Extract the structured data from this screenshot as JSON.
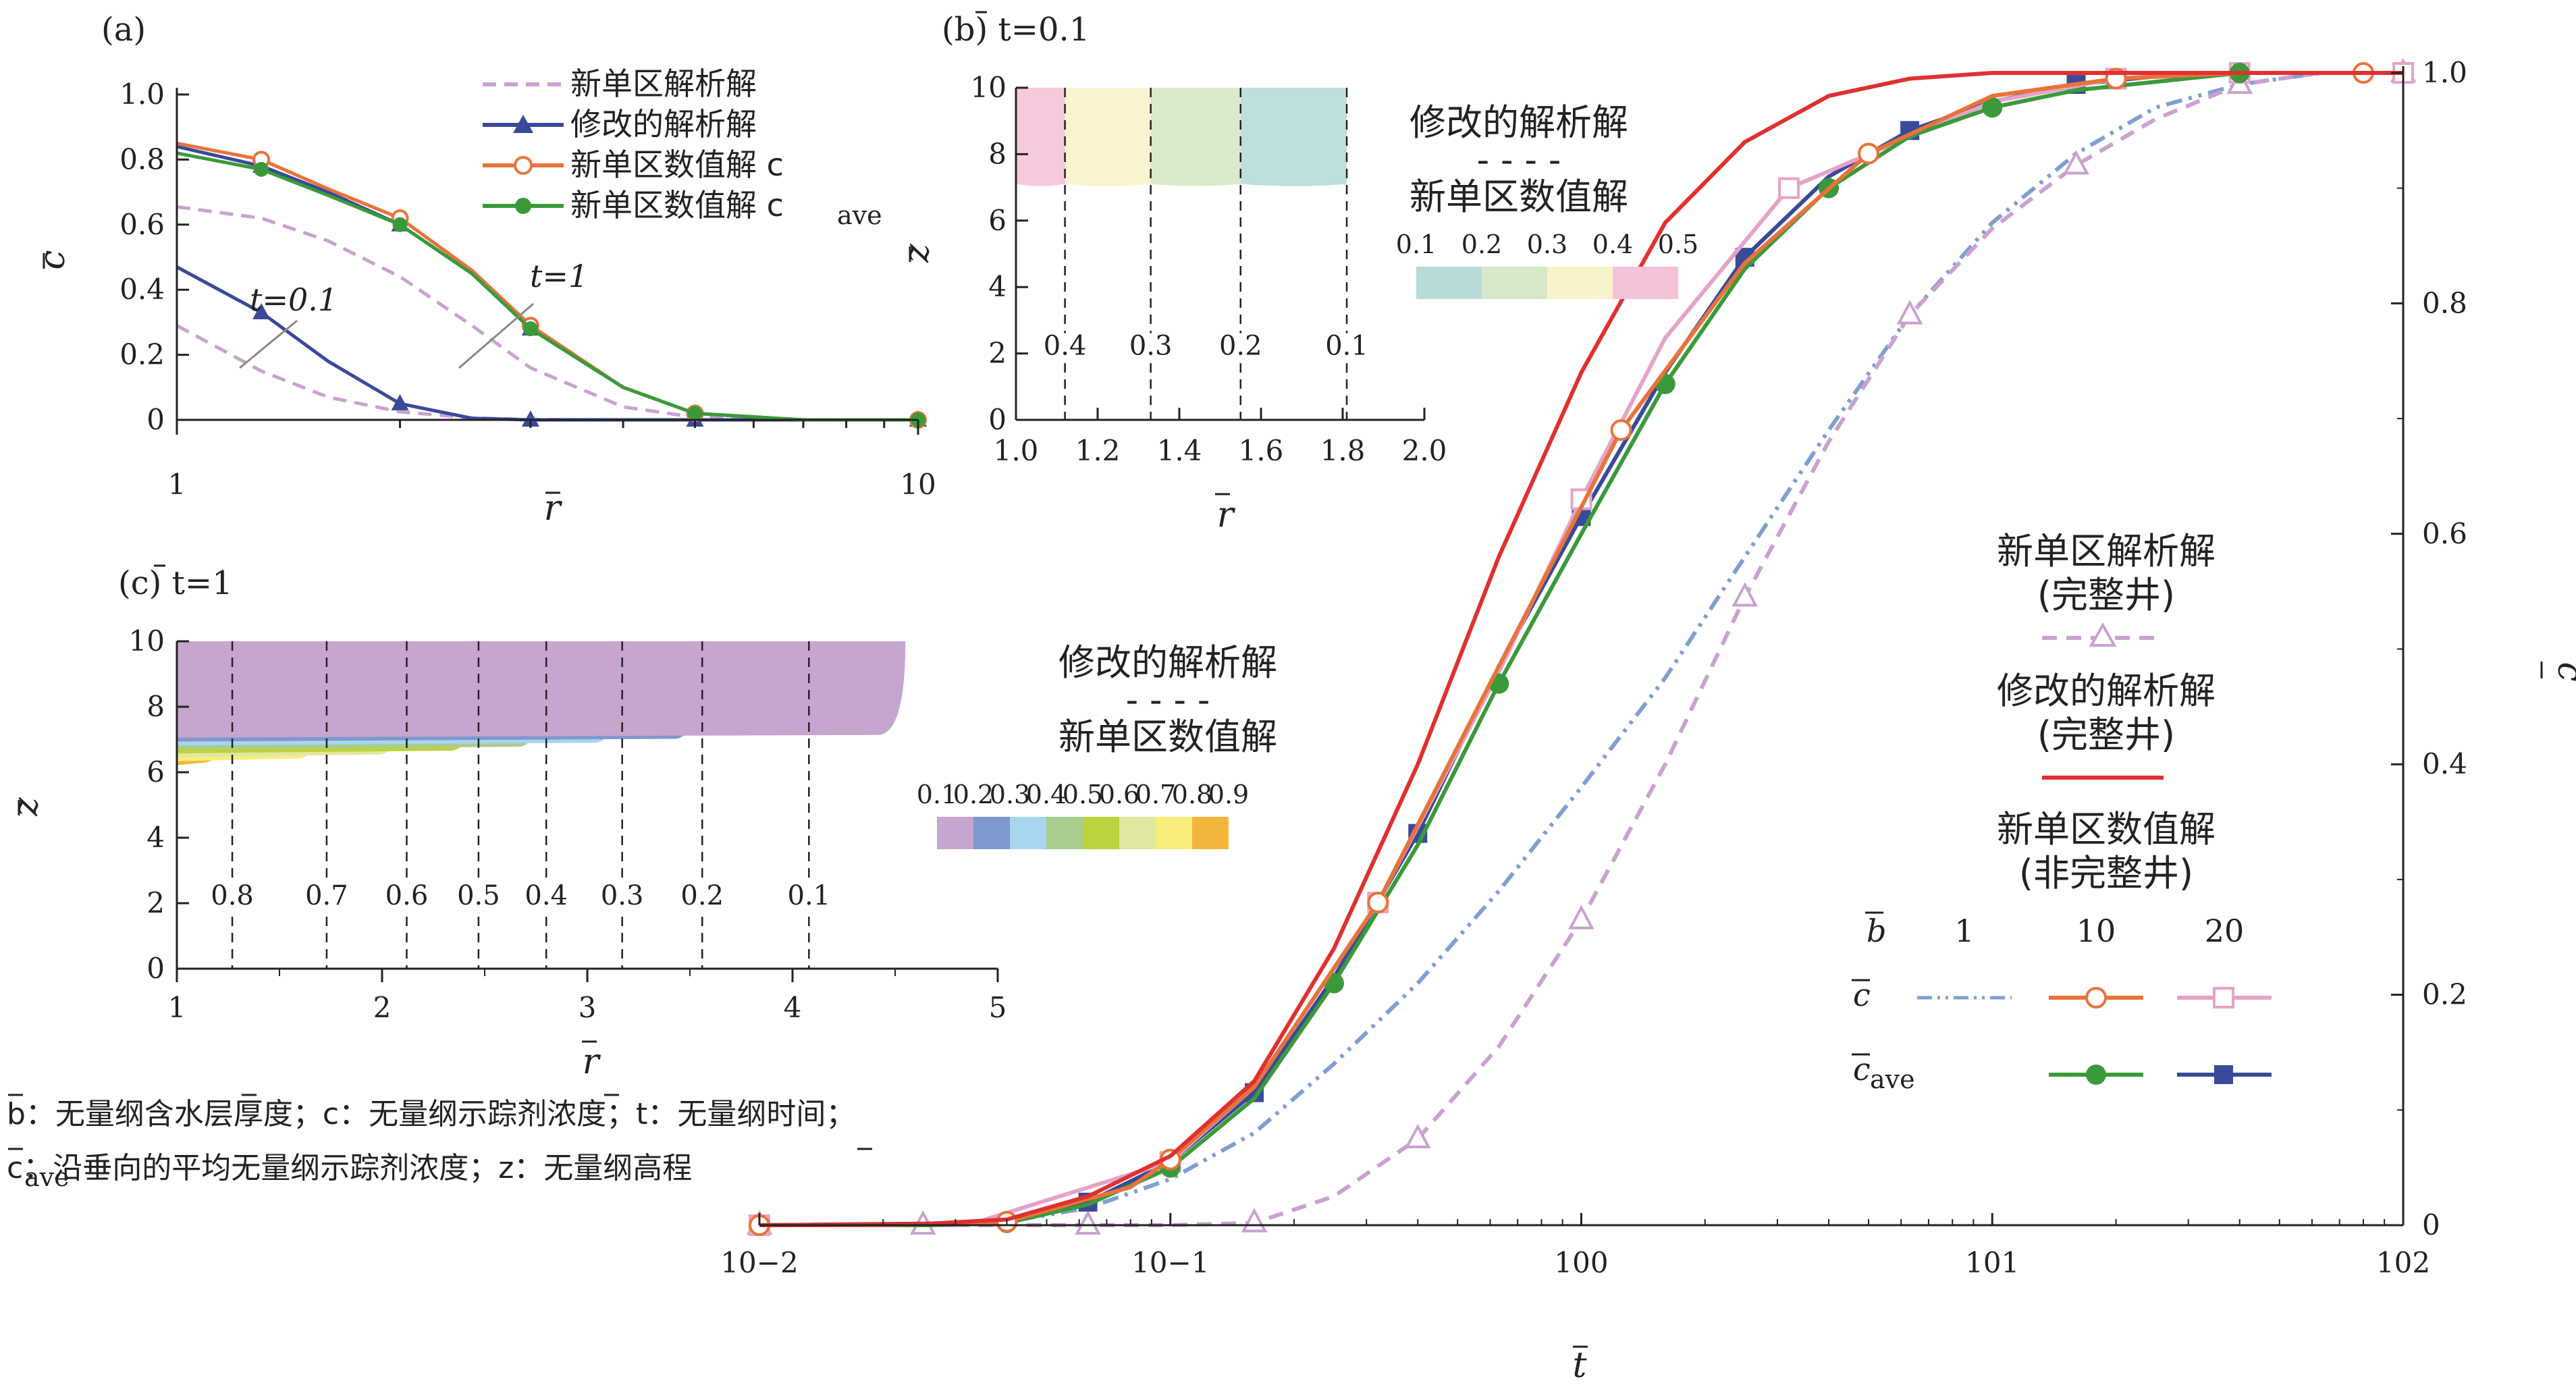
{
  "colors": {
    "dashed_purple": "#c9a2cf",
    "blue": "#3a4a9a",
    "orange": "#e8733a",
    "green": "#3a9a3a",
    "red": "#e03030",
    "pink": "#e6a3c9",
    "dashdot_blue": "#7f9fd1"
  },
  "main": {
    "xlabel": "t",
    "ylabel": "c",
    "x_ticks": [
      "10−2",
      "10−1",
      "100",
      "101",
      "102"
    ],
    "y_ticks": [
      "0",
      "0.2",
      "0.4",
      "0.6",
      "0.8",
      "1.0"
    ],
    "legend": {
      "item1": "新单区解析解",
      "item1b": "(完整井)",
      "item2": "修改的解析解",
      "item2b": "(完整井)",
      "item3": "新单区数值解",
      "item3b": "(非完整井)",
      "b_label": "b",
      "b_values": [
        "1",
        "10",
        "20"
      ],
      "row_c": "c",
      "row_cave": "c",
      "row_cave_sub": "ave"
    }
  },
  "panel_a": {
    "title": "(a)",
    "xlabel": "r",
    "ylabel": "c",
    "x_ticks": [
      "1",
      "10"
    ],
    "y_ticks": [
      "0",
      "0.2",
      "0.4",
      "0.6",
      "0.8",
      "1.0"
    ],
    "legend": [
      "新单区解析解",
      "修改的解析解",
      "新单区数值解 c",
      "新单区数值解 c"
    ],
    "legend_sub": "ave",
    "annot_t01": "t=0.1",
    "annot_t1": "t=1"
  },
  "panel_b": {
    "title": "(b) t=0.1",
    "xlabel": "r",
    "ylabel": "z",
    "x_ticks": [
      "1.0",
      "1.2",
      "1.4",
      "1.6",
      "1.8",
      "2.0"
    ],
    "y_ticks": [
      "0",
      "2",
      "4",
      "6",
      "8",
      "10"
    ],
    "contour_labels": [
      "0.4",
      "0.3",
      "0.2",
      "0.1"
    ],
    "legend_title1": "修改的解析解",
    "legend_dash": "- - - -",
    "legend_title2": "新单区数值解",
    "colorbar_labels": [
      "0.1",
      "0.2",
      "0.3",
      "0.4",
      "0.5"
    ],
    "colorbar_colors": [
      "#b7dbd9",
      "#d6e8c7",
      "#f8f3c9",
      "#f5c3d9"
    ]
  },
  "panel_c": {
    "title": "(c) t=1",
    "xlabel": "r",
    "ylabel": "z",
    "x_ticks": [
      "1",
      "2",
      "3",
      "4",
      "5"
    ],
    "y_ticks": [
      "0",
      "2",
      "4",
      "6",
      "8",
      "10"
    ],
    "contour_labels": [
      "0.8",
      "0.7",
      "0.6",
      "0.5",
      "0.4",
      "0.3",
      "0.2",
      "0.1"
    ],
    "legend_title1": "修改的解析解",
    "legend_dash": "- - - -",
    "legend_title2": "新单区数值解",
    "colorbar_labels": [
      "0.1",
      "0.2",
      "0.3",
      "0.4",
      "0.5",
      "0.6",
      "0.7",
      "0.8",
      "0.9"
    ],
    "colorbar_colors": [
      "#c6a5cf",
      "#7f98cd",
      "#a8d5ef",
      "#a9cc8f",
      "#bcd23f",
      "#e2e7a0",
      "#f7ee7b",
      "#f3b53b"
    ]
  },
  "notes": {
    "line1": "b：无量纲含水层厚度；c：无量纲示踪剂浓度；t：无量纲时间；",
    "line2": "c：沿垂向的平均无量纲示踪剂浓度；z：无量纲高程",
    "line2_sub": "ave"
  },
  "chart_data": [
    {
      "type": "line",
      "title": "",
      "xlabel": "t",
      "ylabel": "c",
      "x_scale": "log",
      "xlim": [
        0.01,
        100
      ],
      "ylim": [
        0,
        1.0
      ],
      "series": [
        {
          "name": "新单区解析解 (完整井)",
          "x": [
            0.01,
            0.016,
            0.025,
            0.04,
            0.063,
            0.1,
            0.16,
            0.25,
            0.4,
            0.63,
            1.0,
            1.6,
            2.5,
            4.0,
            6.3,
            10,
            16,
            25,
            40,
            63,
            100
          ],
          "values": [
            0,
            0,
            0,
            0,
            0,
            0,
            0.002,
            0.025,
            0.075,
            0.155,
            0.265,
            0.4,
            0.545,
            0.68,
            0.79,
            0.865,
            0.92,
            0.96,
            0.99,
            1.0,
            1.0
          ]
        },
        {
          "name": "修改的解析解 (完整井)",
          "x": [
            0.01,
            0.025,
            0.04,
            0.063,
            0.1,
            0.16,
            0.25,
            0.4,
            0.63,
            1.0,
            1.6,
            2.5,
            4.0,
            6.3,
            10,
            20,
            40,
            100
          ],
          "values": [
            0,
            0.001,
            0.005,
            0.025,
            0.06,
            0.125,
            0.24,
            0.4,
            0.58,
            0.74,
            0.87,
            0.94,
            0.98,
            0.995,
            1.0,
            1.0,
            1.0,
            1.0
          ]
        },
        {
          "name": "b=1",
          "x": [
            0.01,
            0.025,
            0.04,
            0.063,
            0.1,
            0.16,
            0.25,
            0.4,
            0.63,
            1.0,
            1.6,
            2.5,
            4.0,
            6.3,
            10,
            16,
            25,
            40,
            63,
            100
          ],
          "values": [
            0,
            0,
            0.003,
            0.015,
            0.04,
            0.08,
            0.14,
            0.21,
            0.29,
            0.38,
            0.475,
            0.58,
            0.69,
            0.79,
            0.87,
            0.93,
            0.97,
            0.99,
            1.0,
            1.0
          ]
        },
        {
          "name": "b=10 c",
          "x": [
            0.01,
            0.02,
            0.04,
            0.08,
            0.1,
            0.16,
            0.32,
            0.63,
            1.25,
            2.5,
            5,
            10,
            20,
            40,
            80
          ],
          "values": [
            0,
            0,
            0.003,
            0.033,
            0.057,
            0.12,
            0.28,
            0.485,
            0.69,
            0.835,
            0.93,
            0.98,
            0.995,
            1.0,
            1.0
          ]
        },
        {
          "name": "b=10 c_ave",
          "x": [
            0.01,
            0.025,
            0.04,
            0.063,
            0.1,
            0.16,
            0.25,
            0.4,
            0.63,
            1.0,
            1.6,
            2.5,
            4.0,
            6.3,
            10,
            16,
            40
          ],
          "values": [
            0,
            0,
            0.002,
            0.018,
            0.05,
            0.11,
            0.21,
            0.33,
            0.47,
            0.6,
            0.73,
            0.83,
            0.9,
            0.945,
            0.97,
            0.985,
            1.0
          ]
        },
        {
          "name": "b=20 c",
          "x": [
            0.01,
            0.032,
            0.1,
            0.16,
            0.32,
            0.63,
            1.0,
            1.6,
            3.2,
            10,
            20,
            32,
            40,
            100
          ],
          "values": [
            0,
            0,
            0.055,
            0.12,
            0.28,
            0.48,
            0.63,
            0.77,
            0.9,
            0.975,
            0.995,
            1.0,
            1.0,
            1.0
          ]
        },
        {
          "name": "b=20 c_ave",
          "x": [
            0.01,
            0.04,
            0.063,
            0.1,
            0.16,
            0.25,
            0.4,
            0.63,
            1.0,
            1.6,
            2.5,
            4,
            6.3,
            10,
            16,
            25,
            40
          ],
          "values": [
            0,
            0.002,
            0.02,
            0.055,
            0.115,
            0.215,
            0.34,
            0.485,
            0.615,
            0.74,
            0.84,
            0.91,
            0.95,
            0.975,
            0.99,
            0.997,
            1.0
          ]
        }
      ]
    },
    {
      "type": "line",
      "title": "(a)",
      "xlabel": "r",
      "ylabel": "c",
      "x_scale": "log",
      "xlim": [
        1,
        10
      ],
      "ylim": [
        0,
        1.0
      ],
      "series": [
        {
          "name": "新单区解析解 t=0.1",
          "x": [
            1,
            1.3,
            1.6,
            2,
            2.5,
            3,
            4,
            5,
            7,
            10
          ],
          "values": [
            0.29,
            0.15,
            0.07,
            0.025,
            0.006,
            0.001,
            0,
            0,
            0,
            0
          ]
        },
        {
          "name": "新单区解析解 t=1",
          "x": [
            1,
            1.3,
            1.6,
            2,
            2.5,
            3,
            4,
            5,
            7,
            10
          ],
          "values": [
            0.655,
            0.62,
            0.55,
            0.44,
            0.29,
            0.16,
            0.04,
            0.008,
            0,
            0
          ]
        },
        {
          "name": "修改的解析解 t=0.1",
          "x": [
            1,
            1.3,
            1.6,
            2,
            2.5,
            3,
            4,
            5,
            7,
            10
          ],
          "values": [
            0.47,
            0.33,
            0.18,
            0.05,
            0.005,
            0,
            0,
            0,
            0,
            0
          ]
        },
        {
          "name": "修改的解析解 t=1",
          "x": [
            1,
            1.3,
            1.6,
            2,
            2.5,
            3,
            4,
            5,
            7,
            10
          ],
          "values": [
            0.84,
            0.78,
            0.7,
            0.6,
            0.45,
            0.28,
            0.1,
            0.02,
            0,
            0
          ]
        },
        {
          "name": "新单区数值解 c t=1",
          "x": [
            1,
            1.3,
            1.6,
            2,
            2.5,
            3,
            4,
            5,
            7,
            10
          ],
          "values": [
            0.85,
            0.8,
            0.71,
            0.62,
            0.46,
            0.29,
            0.1,
            0.02,
            0,
            0
          ]
        },
        {
          "name": "新单区数值解 c_ave t=1",
          "x": [
            1,
            1.3,
            1.6,
            2,
            2.5,
            3,
            4,
            5,
            7,
            10
          ],
          "values": [
            0.82,
            0.77,
            0.69,
            0.6,
            0.45,
            0.28,
            0.1,
            0.02,
            0,
            0
          ]
        }
      ]
    },
    {
      "type": "heatmap",
      "title": "(b) t=0.1",
      "xlabel": "r",
      "ylabel": "z",
      "xlim": [
        1.0,
        2.0
      ],
      "ylim": [
        0,
        10
      ],
      "contours": [
        {
          "level": 0.4,
          "r": 1.12
        },
        {
          "level": 0.3,
          "r": 1.33
        },
        {
          "level": 0.2,
          "r": 1.55
        },
        {
          "level": 0.1,
          "r": 1.81
        }
      ]
    },
    {
      "type": "heatmap",
      "title": "(c) t=1",
      "xlabel": "r",
      "ylabel": "z",
      "xlim": [
        1,
        5
      ],
      "ylim": [
        0,
        10
      ],
      "contours": [
        {
          "level": 0.8,
          "r": 1.27
        },
        {
          "level": 0.7,
          "r": 1.73
        },
        {
          "level": 0.6,
          "r": 2.12
        },
        {
          "level": 0.5,
          "r": 2.47
        },
        {
          "level": 0.4,
          "r": 2.8
        },
        {
          "level": 0.3,
          "r": 3.17
        },
        {
          "level": 0.2,
          "r": 3.56
        },
        {
          "level": 0.1,
          "r": 4.08
        }
      ]
    }
  ]
}
